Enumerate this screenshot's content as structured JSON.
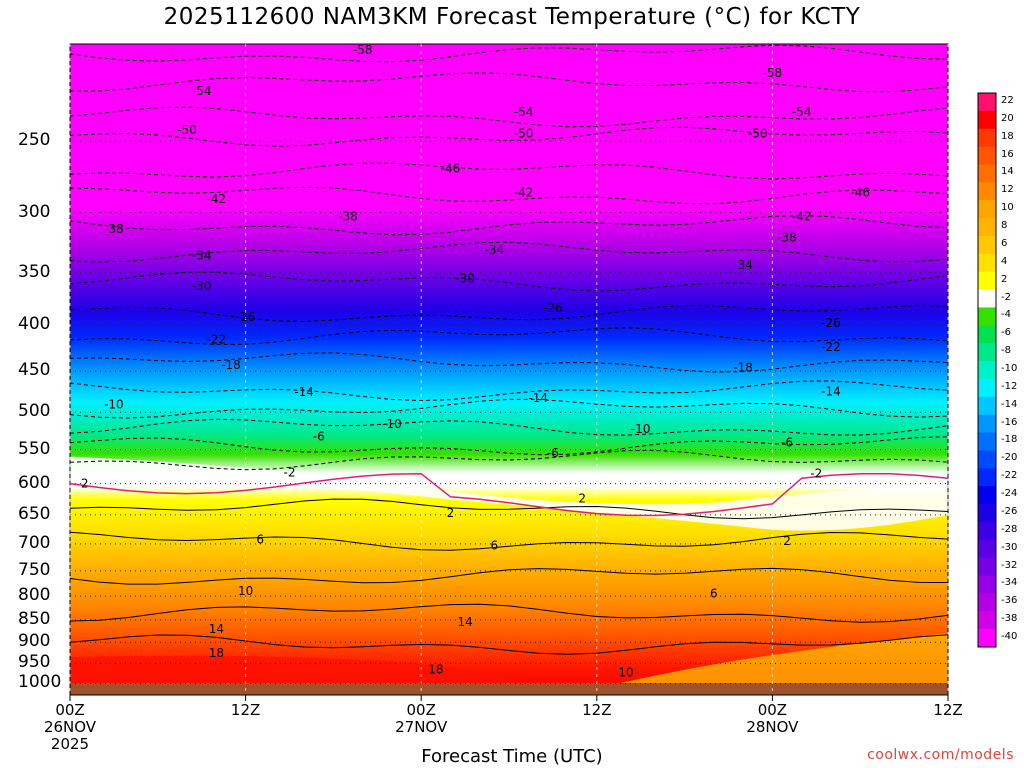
{
  "chart_data": {
    "type": "heatmap",
    "title": "2025112600 NAM3KM Forecast Temperature (°C) for KCTY",
    "xlabel": "Forecast Time (UTC)",
    "ylabel": "",
    "y_axis": "pressure (hPa), inverted",
    "ylim": [
      1030,
      195
    ],
    "y_ticks": [
      "250",
      "300",
      "350",
      "400",
      "450",
      "500",
      "550",
      "600",
      "650",
      "700",
      "750",
      "800",
      "850",
      "900",
      "950",
      "1000"
    ],
    "x_ticks": [
      {
        "hour": 0,
        "lines": [
          "00Z",
          "26NOV",
          "2025"
        ]
      },
      {
        "hour": 12,
        "lines": [
          "12Z"
        ]
      },
      {
        "hour": 24,
        "lines": [
          "00Z",
          "27NOV"
        ]
      },
      {
        "hour": 36,
        "lines": [
          "12Z"
        ]
      },
      {
        "hour": 48,
        "lines": [
          "00Z",
          "28NOV"
        ]
      },
      {
        "hour": 60,
        "lines": [
          "12Z"
        ]
      }
    ],
    "xlim": [
      0,
      60
    ],
    "grid": true,
    "colorbar": {
      "labels": [
        "22",
        "20",
        "18",
        "16",
        "14",
        "12",
        "10",
        "8",
        "6",
        "4",
        "2",
        "-2",
        "-4",
        "-6",
        "-8",
        "-10",
        "-12",
        "-14",
        "-16",
        "-18",
        "-20",
        "-22",
        "-24",
        "-26",
        "-28",
        "-30",
        "-32",
        "-34",
        "-36",
        "-38",
        "-40"
      ],
      "colors": [
        "#ff0f6e",
        "#ff0000",
        "#ff3a00",
        "#ff5500",
        "#ff6e00",
        "#ff8a00",
        "#ffa500",
        "#ffb400",
        "#ffc800",
        "#ffe000",
        "#ffff00",
        "#ffffff",
        "#35e000",
        "#00e050",
        "#00e88c",
        "#00f0c8",
        "#00f0ff",
        "#00c8ff",
        "#0096ff",
        "#0070ff",
        "#004bff",
        "#0028ff",
        "#0000f0",
        "#1e00e6",
        "#3c00e6",
        "#5a00e6",
        "#7800e6",
        "#9600e6",
        "#b400e6",
        "#d200e6",
        "#ff00ff"
      ]
    },
    "temperature_profile": [
      {
        "p": 1000,
        "t": 20
      },
      {
        "p": 950,
        "t": 17
      },
      {
        "p": 900,
        "t": 15
      },
      {
        "p": 850,
        "t": 13
      },
      {
        "p": 800,
        "t": 10
      },
      {
        "p": 750,
        "t": 7
      },
      {
        "p": 700,
        "t": 5
      },
      {
        "p": 650,
        "t": 3
      },
      {
        "p": 600,
        "t": 0
      },
      {
        "p": 550,
        "t": -5
      },
      {
        "p": 500,
        "t": -10
      },
      {
        "p": 450,
        "t": -16
      },
      {
        "p": 400,
        "t": -23
      },
      {
        "p": 350,
        "t": -30
      },
      {
        "p": 300,
        "t": -38
      },
      {
        "p": 250,
        "t": -49
      },
      {
        "p": 200,
        "t": -58
      }
    ],
    "contour_labels": [
      {
        "v": "-58",
        "x": 20,
        "p": 198
      },
      {
        "v": "-58",
        "x": 48,
        "p": 210
      },
      {
        "v": "-54",
        "x": 9,
        "p": 220
      },
      {
        "v": "-54",
        "x": 31,
        "p": 232
      },
      {
        "v": "-54",
        "x": 50,
        "p": 232
      },
      {
        "v": "-50",
        "x": 8,
        "p": 243
      },
      {
        "v": "-50",
        "x": 31,
        "p": 245
      },
      {
        "v": "-50",
        "x": 47,
        "p": 245
      },
      {
        "v": "-46",
        "x": 26,
        "p": 268
      },
      {
        "v": "-46",
        "x": 54,
        "p": 285
      },
      {
        "v": "-42",
        "x": 10,
        "p": 290
      },
      {
        "v": "-42",
        "x": 31,
        "p": 285
      },
      {
        "v": "-42",
        "x": 50,
        "p": 303
      },
      {
        "v": "-38",
        "x": 3,
        "p": 313
      },
      {
        "v": "-38",
        "x": 19,
        "p": 303
      },
      {
        "v": "-38",
        "x": 49,
        "p": 320
      },
      {
        "v": "-34",
        "x": 9,
        "p": 335
      },
      {
        "v": "-34",
        "x": 29,
        "p": 330
      },
      {
        "v": "-34",
        "x": 46,
        "p": 343
      },
      {
        "v": "-30",
        "x": 9,
        "p": 362
      },
      {
        "v": "-30",
        "x": 27,
        "p": 355
      },
      {
        "v": "-26",
        "x": 12,
        "p": 392
      },
      {
        "v": "-26",
        "x": 33,
        "p": 383
      },
      {
        "v": "-26",
        "x": 52,
        "p": 398
      },
      {
        "v": "-22",
        "x": 10,
        "p": 415
      },
      {
        "v": "-22",
        "x": 52,
        "p": 423
      },
      {
        "v": "-18",
        "x": 11,
        "p": 443
      },
      {
        "v": "-18",
        "x": 46,
        "p": 446
      },
      {
        "v": "-14",
        "x": 16,
        "p": 475
      },
      {
        "v": "-14",
        "x": 32,
        "p": 482
      },
      {
        "v": "-14",
        "x": 52,
        "p": 474
      },
      {
        "v": "-10",
        "x": 3,
        "p": 490
      },
      {
        "v": "-10",
        "x": 22,
        "p": 515
      },
      {
        "v": "-10",
        "x": 39,
        "p": 522
      },
      {
        "v": "-6",
        "x": 17,
        "p": 532
      },
      {
        "v": "-6",
        "x": 49,
        "p": 540
      },
      {
        "v": "-6",
        "x": 33,
        "p": 555
      },
      {
        "v": "-2",
        "x": 15,
        "p": 583
      },
      {
        "v": "-2",
        "x": 51,
        "p": 585
      },
      {
        "v": "2",
        "x": 1,
        "p": 600
      },
      {
        "v": "2",
        "x": 26,
        "p": 647
      },
      {
        "v": "2",
        "x": 35,
        "p": 623
      },
      {
        "v": "2",
        "x": 49,
        "p": 695
      },
      {
        "v": "6",
        "x": 13,
        "p": 692
      },
      {
        "v": "6",
        "x": 29,
        "p": 703
      },
      {
        "v": "6",
        "x": 44,
        "p": 795
      },
      {
        "v": "10",
        "x": 12,
        "p": 790
      },
      {
        "v": "10",
        "x": 38,
        "p": 972
      },
      {
        "v": "14",
        "x": 10,
        "p": 870
      },
      {
        "v": "14",
        "x": 27,
        "p": 855
      },
      {
        "v": "18",
        "x": 10,
        "p": 925
      },
      {
        "v": "18",
        "x": 25,
        "p": 965
      }
    ]
  },
  "credit": "coolwx.com/models"
}
